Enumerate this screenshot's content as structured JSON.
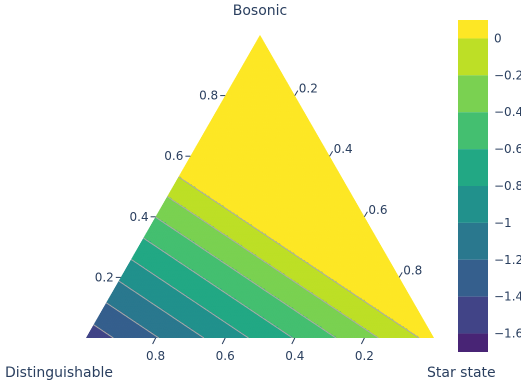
{
  "chart_data": {
    "type": "ternary_contour",
    "vertex_labels": {
      "top": "Bosonic",
      "bottom_left": "Distinguishable",
      "bottom_right": "Star state"
    },
    "axes": {
      "left_axis": {
        "component": "Bosonic",
        "ticks": [
          0.2,
          0.4,
          0.6,
          0.8
        ],
        "tick_labels": [
          "0.2",
          "0.4",
          "0.6",
          "0.8"
        ]
      },
      "right_axis": {
        "component": "Star state",
        "ticks": [
          0.2,
          0.4,
          0.6,
          0.8
        ],
        "tick_labels": [
          "0.2",
          "0.4",
          "0.6",
          "0.8"
        ]
      },
      "bottom_axis": {
        "component": "Distinguishable",
        "ticks": [
          0.8,
          0.6,
          0.4,
          0.2
        ],
        "tick_labels": [
          "0.8",
          "0.6",
          "0.4",
          "0.2"
        ]
      }
    },
    "contour_levels": [
      0,
      -0.2,
      -0.4,
      -0.6,
      -0.8,
      -1,
      -1.2,
      -1.4,
      -1.6
    ],
    "colorbar": {
      "min": -1.7,
      "max": 0.1,
      "ticks": [
        0,
        -0.2,
        -0.4,
        -0.6,
        -0.8,
        -1,
        -1.2,
        -1.4,
        -1.6
      ],
      "tick_labels": [
        "0",
        "−0.2",
        "−0.4",
        "−0.6",
        "−0.8",
        "−1",
        "−1.2",
        "−1.4",
        "−1.6"
      ]
    },
    "colors": [
      "#fde725",
      "#bddf26",
      "#7ad151",
      "#44bf70",
      "#22a884",
      "#21918c",
      "#2a788e",
      "#355f8d",
      "#414487",
      "#482475"
    ],
    "contour_line_color": "#a9a9a9"
  }
}
